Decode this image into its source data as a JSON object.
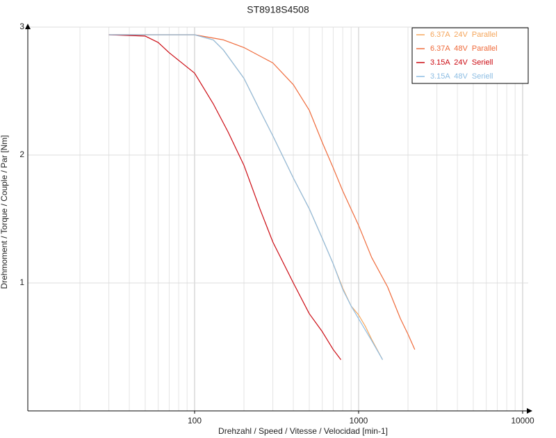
{
  "chart_data": {
    "type": "line",
    "title": "ST8918S4508",
    "x_label": "Drehzahl / Speed / Vitesse / Velocidad [min-1]",
    "y_label": "Drehmoment / Torque / Couple / Par [Nm]",
    "xscale": "log",
    "xlim": [
      10,
      10000
    ],
    "xticks": [
      100,
      1000,
      10000
    ],
    "xminor_ticks": [
      20,
      30,
      40,
      50,
      60,
      70,
      80,
      90,
      200,
      300,
      400,
      500,
      600,
      700,
      800,
      900,
      2000,
      3000,
      4000,
      5000,
      6000,
      7000,
      8000,
      9000
    ],
    "ylim": [
      0,
      3
    ],
    "yticks": [
      1,
      2,
      3
    ],
    "grid": true,
    "legend": "top-right",
    "series": [
      {
        "name": "6.37A  24V  Parallel",
        "color": "#f5a55a",
        "x": [
          30,
          50,
          80,
          100,
          130,
          150,
          200,
          250,
          300,
          400,
          500,
          600,
          700,
          800,
          900,
          1000,
          1100,
          1200,
          1400
        ],
        "values": [
          2.94,
          2.94,
          2.94,
          2.94,
          2.9,
          2.82,
          2.6,
          2.35,
          2.15,
          1.82,
          1.58,
          1.35,
          1.15,
          0.96,
          0.82,
          0.75,
          0.66,
          0.56,
          0.4
        ]
      },
      {
        "name": "6.37A  48V  Parallel",
        "color": "#ef6a3a",
        "x": [
          30,
          50,
          80,
          100,
          150,
          200,
          300,
          400,
          500,
          600,
          700,
          800,
          1000,
          1200,
          1500,
          1800,
          2000,
          2200
        ],
        "values": [
          2.94,
          2.94,
          2.94,
          2.94,
          2.9,
          2.84,
          2.72,
          2.55,
          2.35,
          2.1,
          1.9,
          1.72,
          1.45,
          1.2,
          0.97,
          0.72,
          0.6,
          0.48
        ]
      },
      {
        "name": "3.15A  24V  Seriell",
        "color": "#cc0a12",
        "x": [
          30,
          50,
          60,
          70,
          80,
          100,
          130,
          160,
          200,
          250,
          300,
          400,
          500,
          600,
          700,
          780
        ],
        "values": [
          2.94,
          2.93,
          2.88,
          2.8,
          2.74,
          2.64,
          2.4,
          2.18,
          1.92,
          1.58,
          1.32,
          1.0,
          0.76,
          0.62,
          0.48,
          0.4
        ]
      },
      {
        "name": "3.15A  48V  Seriell",
        "color": "#8dbde3",
        "x": [
          30,
          50,
          80,
          100,
          130,
          150,
          200,
          250,
          300,
          400,
          500,
          600,
          700,
          800,
          900,
          1000,
          1200,
          1400
        ],
        "values": [
          2.94,
          2.94,
          2.94,
          2.94,
          2.9,
          2.82,
          2.6,
          2.35,
          2.15,
          1.82,
          1.58,
          1.35,
          1.15,
          0.95,
          0.82,
          0.72,
          0.55,
          0.4
        ]
      }
    ]
  }
}
